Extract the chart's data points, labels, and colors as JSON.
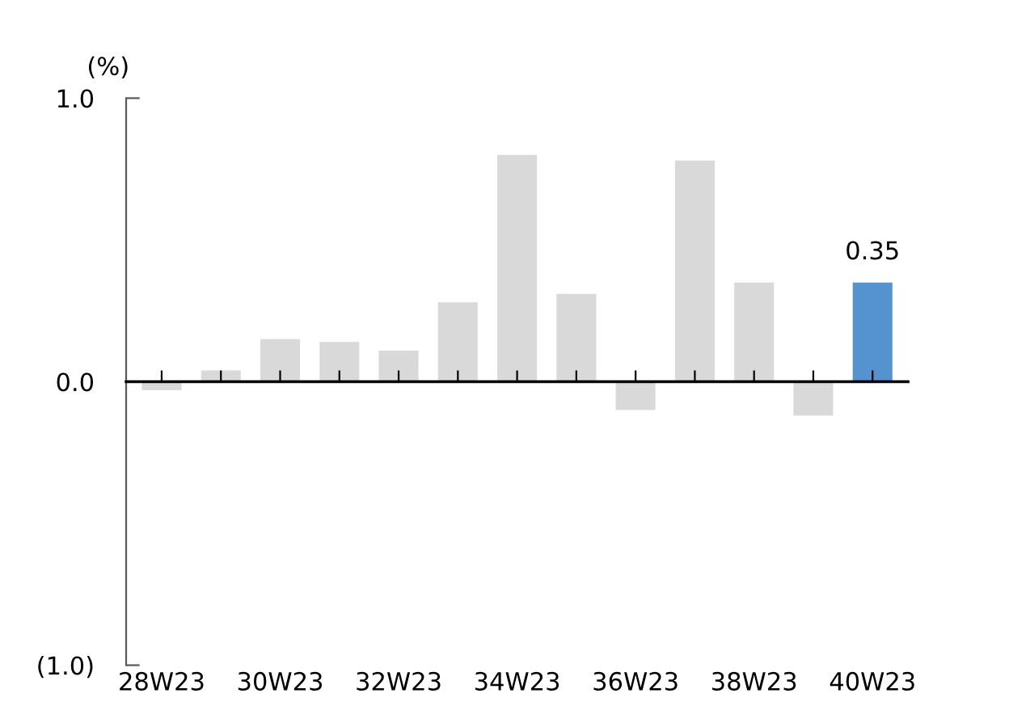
{
  "chart_data": {
    "type": "bar",
    "ylabel": "(%)",
    "categories": [
      "28W23",
      null,
      "30W23",
      null,
      "32W23",
      null,
      "34W23",
      null,
      "36W23",
      null,
      "38W23",
      null,
      "40W23"
    ],
    "values": [
      -0.03,
      0.04,
      0.15,
      0.14,
      0.11,
      0.28,
      0.8,
      0.31,
      -0.1,
      0.78,
      0.35,
      -0.12,
      0.35
    ],
    "colors": [
      "#d9d9d9",
      "#d9d9d9",
      "#d9d9d9",
      "#d9d9d9",
      "#d9d9d9",
      "#d9d9d9",
      "#d9d9d9",
      "#d9d9d9",
      "#d9d9d9",
      "#d9d9d9",
      "#d9d9d9",
      "#d9d9d9",
      "#5592d0"
    ],
    "value_labels": [
      null,
      null,
      null,
      null,
      null,
      null,
      null,
      null,
      null,
      null,
      null,
      null,
      "0.35"
    ],
    "ylim": [
      -1.0,
      1.0
    ],
    "yticks": [
      {
        "value": -1.0,
        "label": "(1.0)"
      },
      {
        "value": 0.0,
        "label": "0.0"
      },
      {
        "value": 1.0,
        "label": "1.0"
      }
    ],
    "legend": false
  }
}
